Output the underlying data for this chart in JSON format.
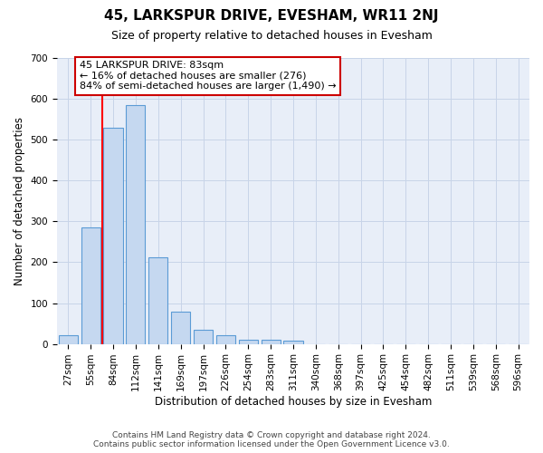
{
  "title": "45, LARKSPUR DRIVE, EVESHAM, WR11 2NJ",
  "subtitle": "Size of property relative to detached houses in Evesham",
  "xlabel": "Distribution of detached houses by size in Evesham",
  "ylabel": "Number of detached properties",
  "footer_line1": "Contains HM Land Registry data © Crown copyright and database right 2024.",
  "footer_line2": "Contains public sector information licensed under the Open Government Licence v3.0.",
  "bar_labels": [
    "27sqm",
    "55sqm",
    "84sqm",
    "112sqm",
    "141sqm",
    "169sqm",
    "197sqm",
    "226sqm",
    "254sqm",
    "283sqm",
    "311sqm",
    "340sqm",
    "368sqm",
    "397sqm",
    "425sqm",
    "454sqm",
    "482sqm",
    "511sqm",
    "539sqm",
    "568sqm",
    "596sqm"
  ],
  "bar_values": [
    22,
    285,
    530,
    585,
    213,
    79,
    35,
    22,
    10,
    10,
    7,
    0,
    0,
    0,
    0,
    0,
    0,
    0,
    0,
    0,
    0
  ],
  "bar_color": "#c5d8f0",
  "bar_edge_color": "#5b9bd5",
  "grid_color": "#c8d4e8",
  "background_color": "#e8eef8",
  "vline_x_index": 2,
  "annotation_text": "45 LARKSPUR DRIVE: 83sqm\n← 16% of detached houses are smaller (276)\n84% of semi-detached houses are larger (1,490) →",
  "annotation_box_color": "#cc0000",
  "ylim": [
    0,
    700
  ],
  "yticks": [
    0,
    100,
    200,
    300,
    400,
    500,
    600,
    700
  ],
  "title_fontsize": 11,
  "subtitle_fontsize": 9,
  "axis_label_fontsize": 8.5,
  "tick_fontsize": 7.5,
  "annotation_fontsize": 8,
  "footer_fontsize": 6.5
}
